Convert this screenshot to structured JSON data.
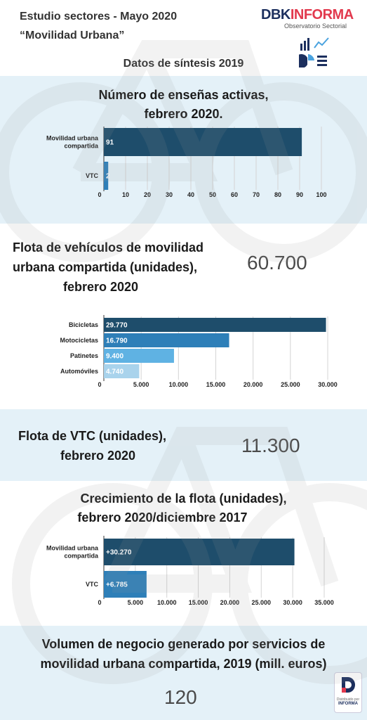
{
  "header": {
    "line1": "Estudio sectores - Mayo 2020",
    "line2": "“Movilidad Urbana”",
    "logo_dbk": "DBK",
    "logo_informa": "INFORMA",
    "logo_sub": "Observatorio Sectorial",
    "subtitle": "Datos de síntesis 2019"
  },
  "colors": {
    "panel": "#e4f1f8",
    "dark_bar": "#1e4d6b",
    "mid_bar": "#2e7fb8",
    "light_bar": "#5fb2e3",
    "pale_bar": "#a9d3ec"
  },
  "sections": {
    "s1": {
      "title_l1": "Número de enseñas activas,",
      "title_l2": "febrero 2020."
    },
    "s2": {
      "title_l1": "Flota de vehículos de movilidad",
      "title_l2": "urbana compartida (unidades),",
      "title_l3": "febrero 2020",
      "value": "60.700"
    },
    "s3": {
      "title_l1": "Flota de VTC (unidades),",
      "title_l2": "febrero 2020",
      "value": "11.300"
    },
    "s4": {
      "title_l1": "Crecimiento de la flota (unidades),",
      "title_l2": "febrero 2020/diciembre 2017"
    },
    "s5": {
      "title_l1": "Volumen de negocio generado por servicios de",
      "title_l2": "movilidad urbana compartida, 2019 (mill. euros)",
      "value": "120"
    }
  },
  "footer": {
    "badge_l1": "Distribuido por",
    "badge_l2": "INFORMA"
  },
  "chart_data": [
    {
      "type": "bar",
      "orientation": "horizontal",
      "categories": [
        "Movilidad urbana compartida",
        "VTC"
      ],
      "values": [
        91,
        2
      ],
      "labels": [
        "91",
        "2"
      ],
      "xlim": [
        0,
        100
      ],
      "ticks": [
        0,
        10,
        20,
        30,
        40,
        50,
        60,
        70,
        80,
        90,
        100
      ],
      "tick_labels": [
        "0",
        "10",
        "20",
        "30",
        "40",
        "50",
        "60",
        "70",
        "80",
        "90",
        "100"
      ],
      "grid": true,
      "colors": [
        "#1e4d6b",
        "#2e7fb8"
      ]
    },
    {
      "type": "bar",
      "orientation": "horizontal",
      "categories": [
        "Bicicletas",
        "Motocicletas",
        "Patinetes",
        "Automóviles"
      ],
      "values": [
        29770,
        16790,
        9400,
        4740
      ],
      "labels": [
        "29.770",
        "16.790",
        "9.400",
        "4.740"
      ],
      "xlim": [
        0,
        30000
      ],
      "ticks": [
        0,
        5000,
        10000,
        15000,
        20000,
        25000,
        30000
      ],
      "tick_labels": [
        "0",
        "5.000",
        "10.000",
        "15.000",
        "20.000",
        "25.000",
        "30.000"
      ],
      "grid": true,
      "colors": [
        "#1e4d6b",
        "#2e7fb8",
        "#5fb2e3",
        "#a9d3ec"
      ]
    },
    {
      "type": "bar",
      "orientation": "horizontal",
      "categories": [
        "Movilidad urbana compartida",
        "VTC"
      ],
      "values": [
        30270,
        6785
      ],
      "labels": [
        "+30.270",
        "+6.785"
      ],
      "xlim": [
        0,
        35000
      ],
      "ticks": [
        0,
        5000,
        10000,
        15000,
        20000,
        25000,
        30000,
        35000
      ],
      "tick_labels": [
        "0",
        "5.000",
        "10.000",
        "15.000",
        "20.000",
        "25.000",
        "30.000",
        "35.000"
      ],
      "grid": true,
      "colors": [
        "#1e4d6b",
        "#2e7fb8"
      ]
    }
  ]
}
